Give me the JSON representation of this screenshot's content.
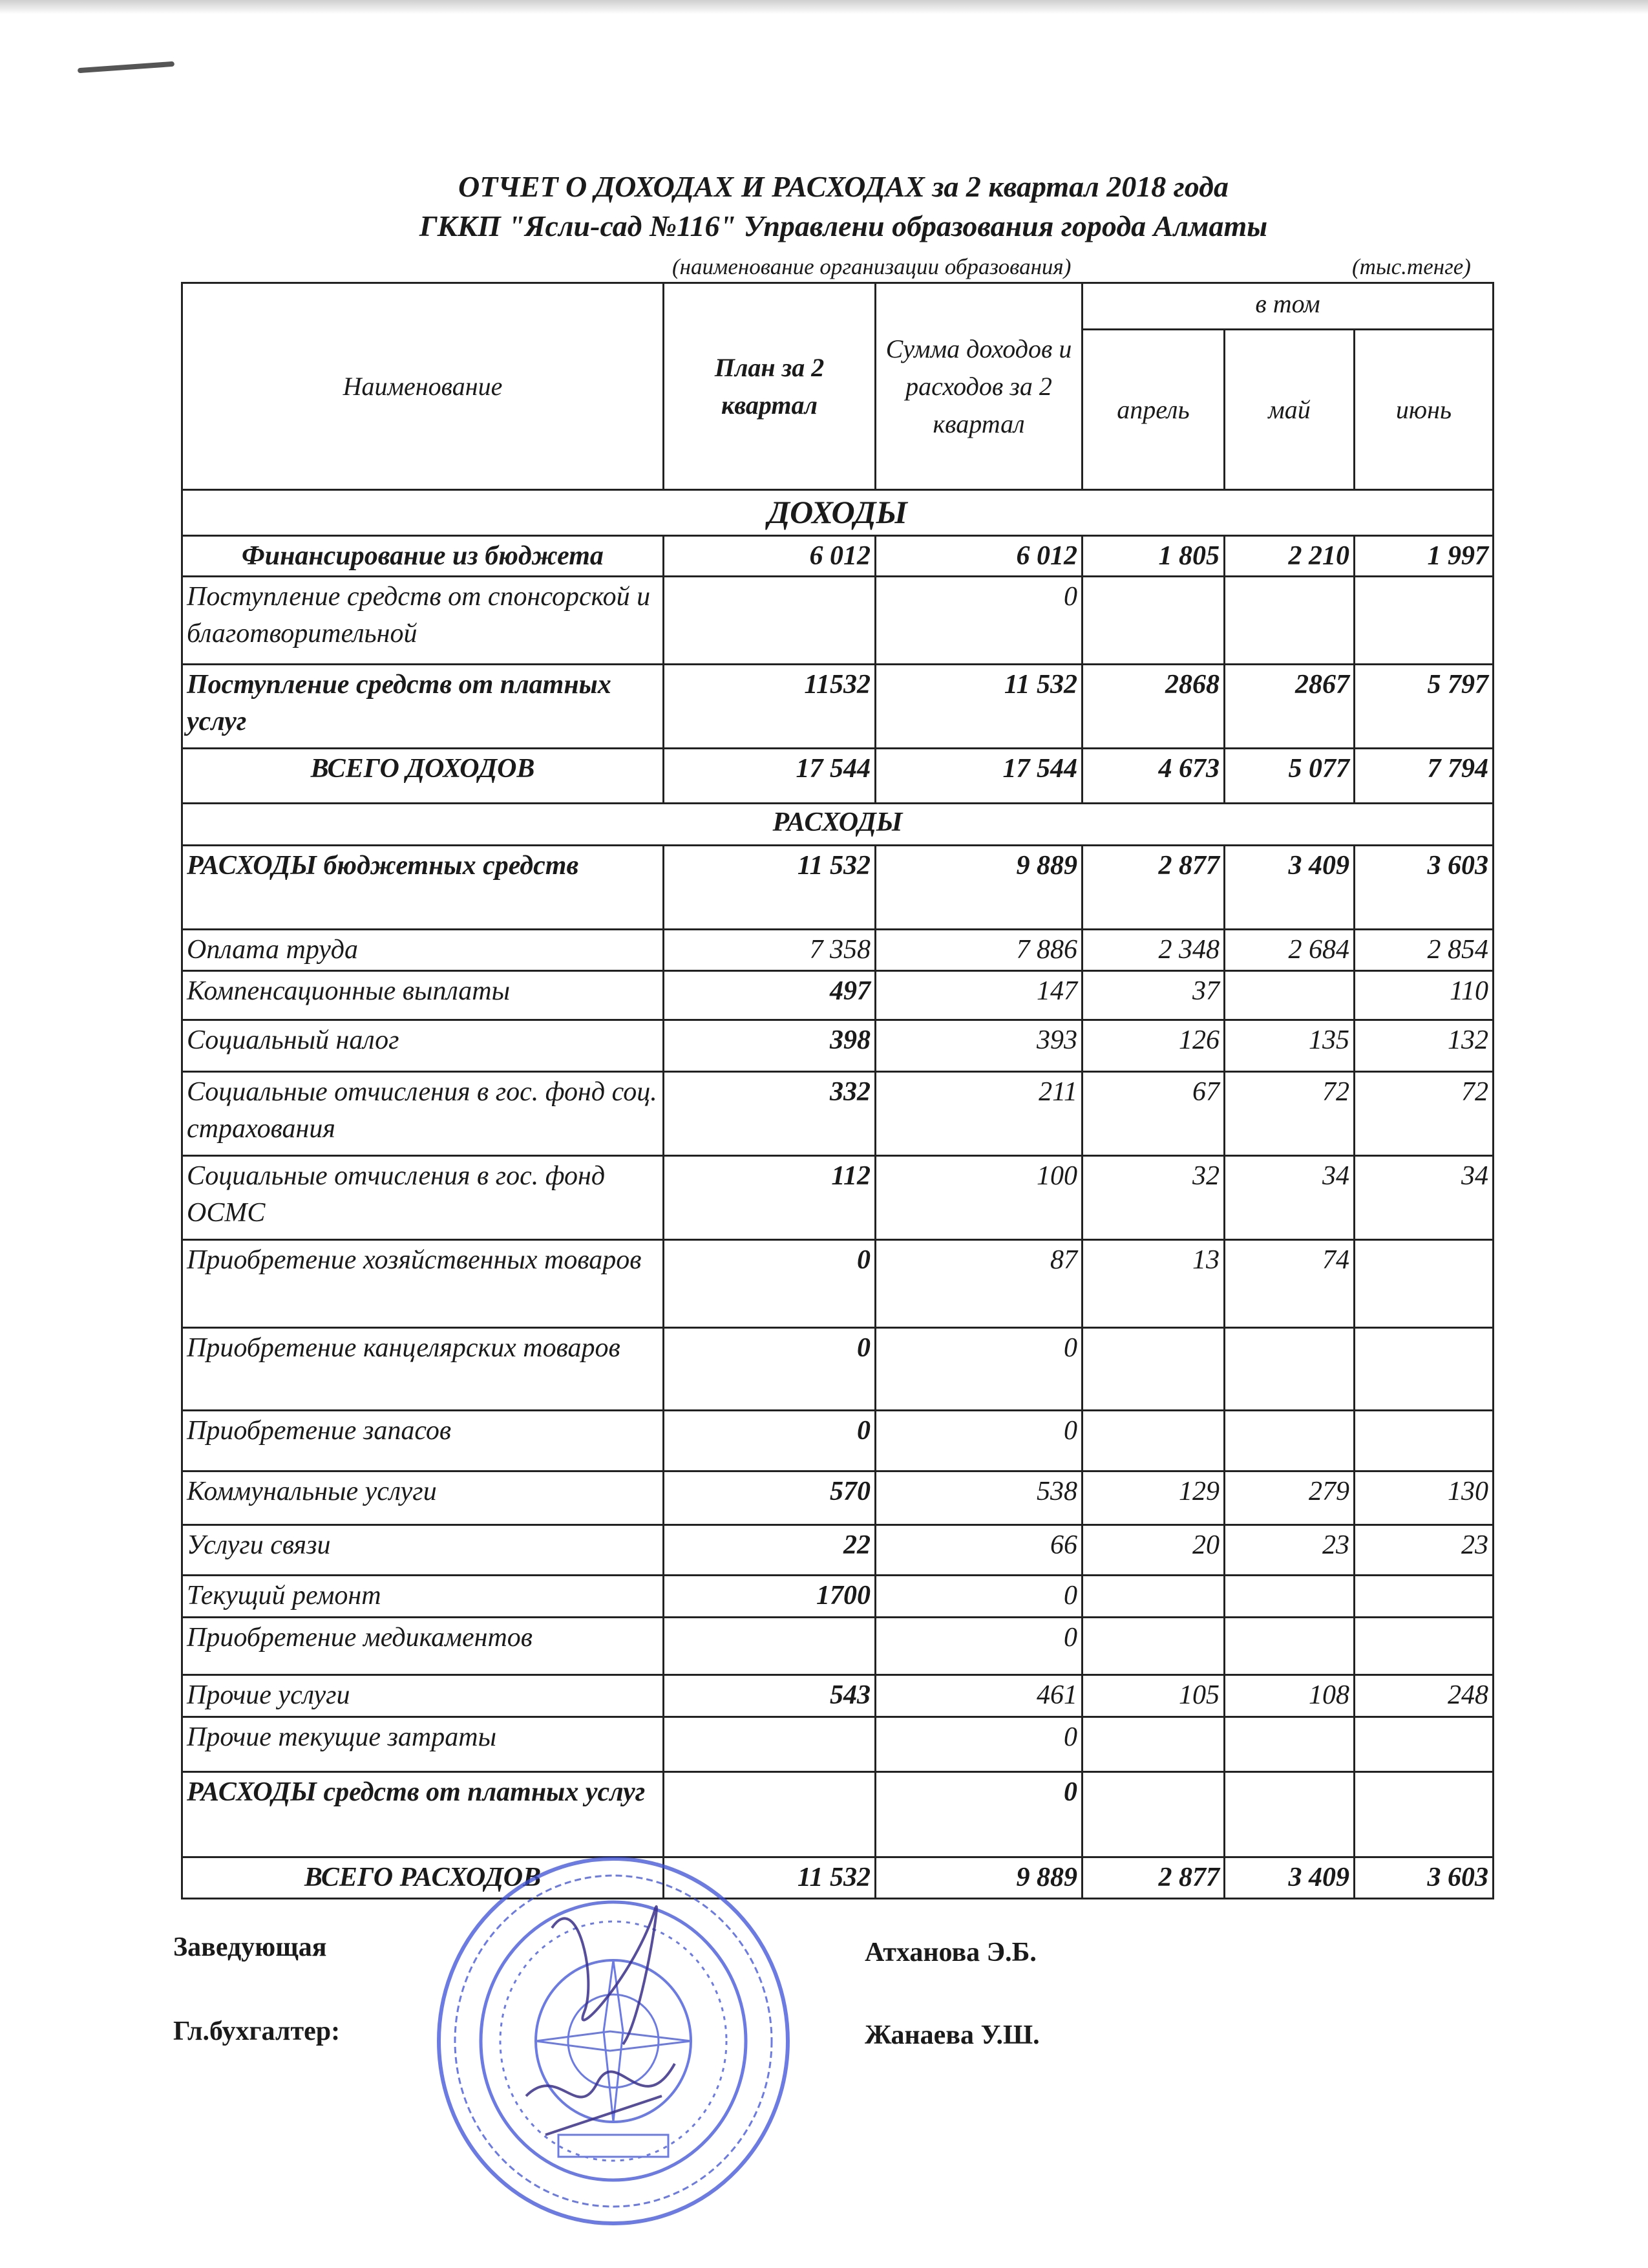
{
  "title_line1": "ОТЧЕТ О ДОХОДАХ И РАСХОДАХ за 2 квартал 2018 года",
  "title_line2": "ГККП \"Ясли-сад №116\" Управлени образования города Алматы",
  "org_caption": "(наименование организации образования)",
  "units": "(тыс.тенге)",
  "header": {
    "name": "Наименование",
    "plan": "План за 2 квартал",
    "actual": "Сумма доходов и расходов за 2 квартал",
    "including": "в том",
    "months": [
      "апрель",
      "май",
      "июнь"
    ]
  },
  "income_section": "ДОХОДЫ",
  "income_rows": [
    {
      "name": "Финансирование из бюджета",
      "plan": "6 012",
      "actual": "6 012",
      "apr": "1 805",
      "may": "2 210",
      "jun": "1 997"
    },
    {
      "name": "Поступление средств от спонсорской и благотворительной",
      "plan": "",
      "actual": "0",
      "apr": "",
      "may": "",
      "jun": ""
    },
    {
      "name": "Поступление средств от платных услуг",
      "plan": "11532",
      "actual": "11 532",
      "apr": "2868",
      "may": "2867",
      "jun": "5 797"
    },
    {
      "name": "ВСЕГО ДОХОДОВ",
      "plan": "17 544",
      "actual": "17 544",
      "apr": "4 673",
      "may": "5 077",
      "jun": "7 794"
    }
  ],
  "expense_section": "РАСХОДЫ",
  "expense_rows": [
    {
      "name": "РАСХОДЫ бюджетных средств",
      "plan": "11 532",
      "actual": "9 889",
      "apr": "2 877",
      "may": "3 409",
      "jun": "3 603"
    },
    {
      "name": "Оплата труда",
      "plan": "7 358",
      "actual": "7 886",
      "apr": "2 348",
      "may": "2 684",
      "jun": "2 854"
    },
    {
      "name": "Компенсационные выплаты",
      "plan": "497",
      "actual": "147",
      "apr": "37",
      "may": "",
      "jun": "110"
    },
    {
      "name": "Социальный налог",
      "plan": "398",
      "actual": "393",
      "apr": "126",
      "may": "135",
      "jun": "132"
    },
    {
      "name": "Социальные отчисления в гос. фонд соц. страхования",
      "plan": "332",
      "actual": "211",
      "apr": "67",
      "may": "72",
      "jun": "72"
    },
    {
      "name": "Социальные отчисления в гос. фонд ОСМС",
      "plan": "112",
      "actual": "100",
      "apr": "32",
      "may": "34",
      "jun": "34"
    },
    {
      "name": "Приобретение хозяйственных товаров",
      "plan": "0",
      "actual": "87",
      "apr": "13",
      "may": "74",
      "jun": ""
    },
    {
      "name": "Приобретение канцелярских товаров",
      "plan": "0",
      "actual": "0",
      "apr": "",
      "may": "",
      "jun": ""
    },
    {
      "name": "Приобретение запасов",
      "plan": "0",
      "actual": "0",
      "apr": "",
      "may": "",
      "jun": ""
    },
    {
      "name": "Коммунальные услуги",
      "plan": "570",
      "actual": "538",
      "apr": "129",
      "may": "279",
      "jun": "130"
    },
    {
      "name": "Услуги связи",
      "plan": "22",
      "actual": "66",
      "apr": "20",
      "may": "23",
      "jun": "23"
    },
    {
      "name": "Текущий ремонт",
      "plan": "1700",
      "actual": "0",
      "apr": "",
      "may": "",
      "jun": ""
    },
    {
      "name": "Приобретение медикаментов",
      "plan": "",
      "actual": "0",
      "apr": "",
      "may": "",
      "jun": ""
    },
    {
      "name": "Прочие услуги",
      "plan": "543",
      "actual": "461",
      "apr": "105",
      "may": "108",
      "jun": "248"
    },
    {
      "name": "Прочие текущие затраты",
      "plan": "",
      "actual": "0",
      "apr": "",
      "may": "",
      "jun": ""
    },
    {
      "name": "РАСХОДЫ  средств от платных услуг",
      "plan": "",
      "actual": "0",
      "apr": "",
      "may": "",
      "jun": ""
    },
    {
      "name": "ВСЕГО РАСХОДОВ",
      "plan": "11 532",
      "actual": "9 889",
      "apr": "2 877",
      "may": "3 409",
      "jun": "3 603"
    }
  ],
  "signatures": {
    "head_label": "Заведующая",
    "head_name": "Атханова Э.Б.",
    "accountant_label": "Гл.бухгалтер:",
    "accountant_name": "Жанаева У.Ш."
  },
  "colors": {
    "stamp": "#3b4fd8",
    "ink": "#1a1a1a"
  }
}
